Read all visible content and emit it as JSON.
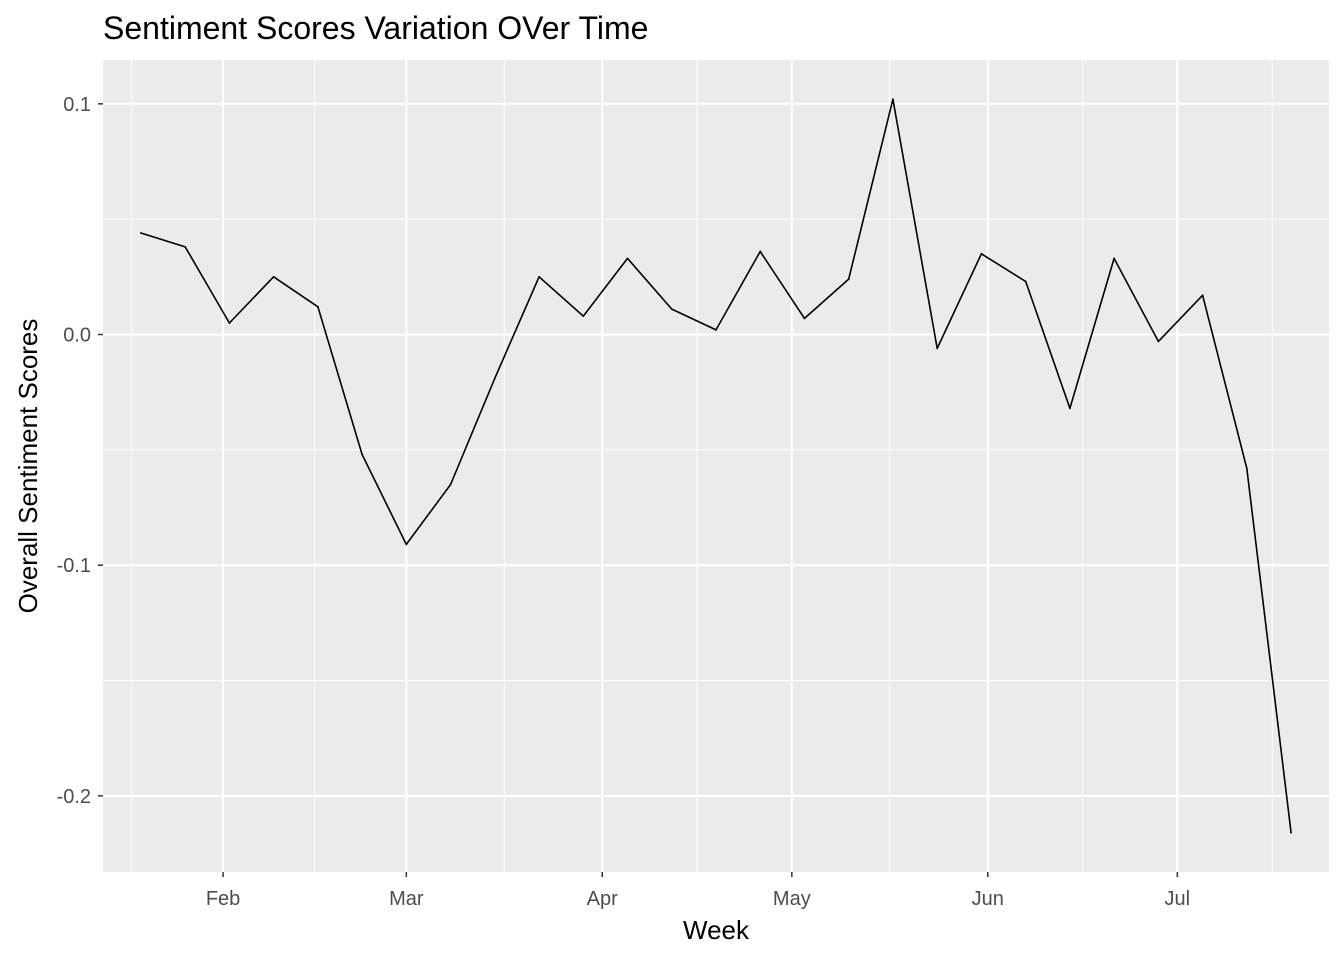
{
  "chart_data": {
    "type": "line",
    "title": "Sentiment Scores Variation OVer Time",
    "xlabel": "Week",
    "ylabel": "Overall Sentiment Scores",
    "x_ticks": [
      {
        "label": "Feb",
        "date": "2020-02-01"
      },
      {
        "label": "Mar",
        "date": "2020-03-01"
      },
      {
        "label": "Apr",
        "date": "2020-04-01"
      },
      {
        "label": "May",
        "date": "2020-05-01"
      },
      {
        "label": "Jun",
        "date": "2020-06-01"
      },
      {
        "label": "Jul",
        "date": "2020-07-01"
      }
    ],
    "y_ticks": [
      0.1,
      0.0,
      -0.1,
      -0.2
    ],
    "y_tick_labels": [
      "0.1",
      "0.0",
      "-0.1",
      "-0.2"
    ],
    "xlim": [
      "2020-01-13",
      "2020-07-25"
    ],
    "ylim": [
      -0.233,
      0.119
    ],
    "grid": true,
    "series": [
      {
        "color": "#000000",
        "points": [
          {
            "x": "2020-01-19",
            "y": 0.044
          },
          {
            "x": "2020-01-26",
            "y": 0.038
          },
          {
            "x": "2020-02-02",
            "y": 0.005
          },
          {
            "x": "2020-02-09",
            "y": 0.025
          },
          {
            "x": "2020-02-16",
            "y": 0.012
          },
          {
            "x": "2020-02-23",
            "y": -0.052
          },
          {
            "x": "2020-03-01",
            "y": -0.091
          },
          {
            "x": "2020-03-08",
            "y": -0.065
          },
          {
            "x": "2020-03-15",
            "y": -0.019
          },
          {
            "x": "2020-03-22",
            "y": 0.025
          },
          {
            "x": "2020-03-29",
            "y": 0.008
          },
          {
            "x": "2020-04-05",
            "y": 0.033
          },
          {
            "x": "2020-04-12",
            "y": 0.011
          },
          {
            "x": "2020-04-19",
            "y": 0.002
          },
          {
            "x": "2020-04-26",
            "y": 0.036
          },
          {
            "x": "2020-05-03",
            "y": 0.007
          },
          {
            "x": "2020-05-10",
            "y": 0.024
          },
          {
            "x": "2020-05-17",
            "y": 0.102
          },
          {
            "x": "2020-05-24",
            "y": -0.006
          },
          {
            "x": "2020-05-31",
            "y": 0.035
          },
          {
            "x": "2020-06-07",
            "y": 0.023
          },
          {
            "x": "2020-06-14",
            "y": -0.032
          },
          {
            "x": "2020-06-21",
            "y": 0.033
          },
          {
            "x": "2020-06-28",
            "y": -0.003
          },
          {
            "x": "2020-07-05",
            "y": 0.017
          },
          {
            "x": "2020-07-12",
            "y": -0.058
          },
          {
            "x": "2020-07-19",
            "y": -0.216
          }
        ]
      }
    ]
  }
}
